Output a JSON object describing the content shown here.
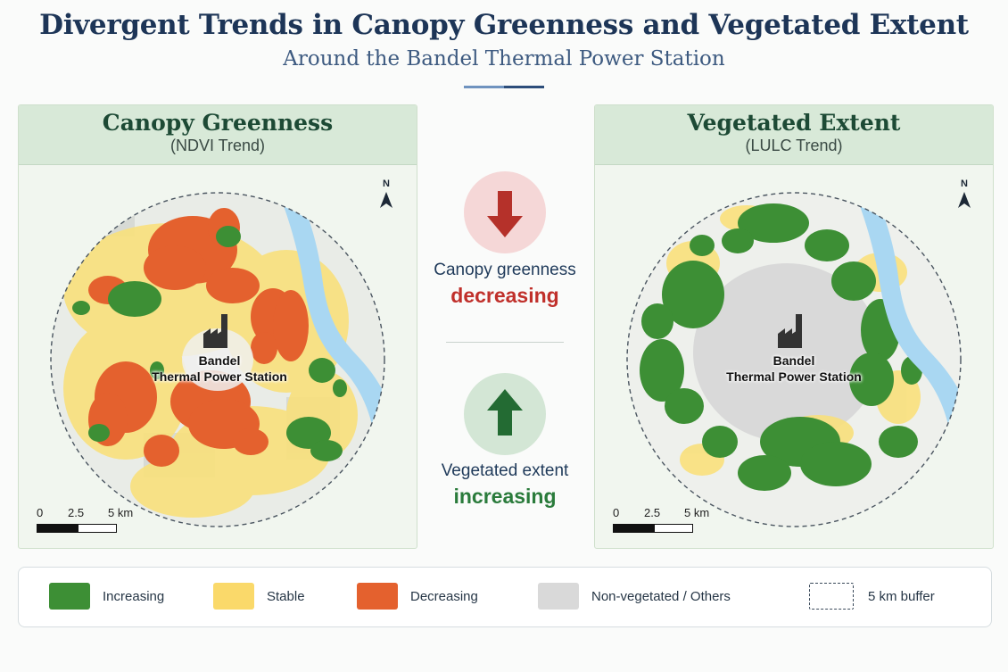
{
  "header": {
    "title": "Divergent Trends in Canopy Greenness and Vegetated Extent",
    "subtitle": "Around the Bandel Thermal Power Station"
  },
  "panels": {
    "left": {
      "title": "Canopy Greenness",
      "subtitle": "(NDVI Trend)"
    },
    "right": {
      "title": "Vegetated Extent",
      "subtitle": "(LULC Trend)"
    }
  },
  "map": {
    "north_label": "N",
    "plant_label_line1": "Bandel",
    "plant_label_line2": "Thermal Power Station",
    "scale": {
      "tick0": "0",
      "tick1": "2.5",
      "tick2": "5 km"
    }
  },
  "indicators": {
    "top": {
      "line1": "Canopy greenness",
      "line2": "decreasing",
      "direction": "down",
      "color": "#c0302b"
    },
    "bottom": {
      "line1": "Vegetated extent",
      "line2": "increasing",
      "direction": "up",
      "color": "#2a7b3b"
    }
  },
  "legend": {
    "items": [
      {
        "label": "Increasing",
        "color": "#3d8f35"
      },
      {
        "label": "Stable",
        "color": "#fad96a"
      },
      {
        "label": "Decreasing",
        "color": "#e4612e"
      },
      {
        "label": "Non-vegetated / Others",
        "color": "#d9d9d9"
      },
      {
        "label": "5 km buffer",
        "color": "dashed"
      }
    ]
  },
  "colors": {
    "increasing": "#3d8f35",
    "stable": "#fad96a",
    "decreasing": "#e4612e",
    "non_vegetated": "#d9d9d9",
    "water": "#a9d7f2"
  }
}
